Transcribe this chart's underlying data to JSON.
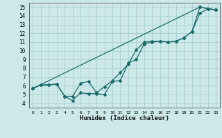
{
  "title": "",
  "xlabel": "Humidex (Indice chaleur)",
  "ylabel": "",
  "bg_color": "#cce8e8",
  "grid_color": "#aacfcf",
  "line_color": "#1a6b6b",
  "xlim": [
    -0.5,
    23.5
  ],
  "ylim": [
    3.5,
    15.5
  ],
  "xticks": [
    0,
    1,
    2,
    3,
    4,
    5,
    6,
    7,
    8,
    9,
    10,
    11,
    12,
    13,
    14,
    15,
    16,
    17,
    18,
    19,
    20,
    21,
    22,
    23
  ],
  "yticks": [
    4,
    5,
    6,
    7,
    8,
    9,
    10,
    11,
    12,
    13,
    14,
    15
  ],
  "line1_x": [
    0,
    1,
    2,
    3,
    4,
    5,
    6,
    7,
    8,
    9,
    10,
    11,
    12,
    13,
    14,
    15,
    16,
    17,
    18,
    19,
    20,
    21,
    22,
    23
  ],
  "line1_y": [
    5.7,
    6.1,
    6.1,
    6.2,
    4.8,
    4.8,
    6.3,
    6.5,
    5.2,
    5.9,
    6.6,
    7.5,
    8.5,
    10.1,
    11.0,
    11.1,
    11.1,
    11.0,
    11.1,
    11.5,
    12.2,
    15.0,
    14.8,
    14.7
  ],
  "line2_x": [
    0,
    1,
    2,
    3,
    4,
    5,
    6,
    7,
    8,
    9,
    10,
    11,
    12,
    13,
    14,
    15,
    16,
    17,
    18,
    19,
    20,
    21,
    22,
    23
  ],
  "line2_y": [
    5.7,
    6.1,
    6.1,
    6.2,
    4.8,
    4.3,
    5.2,
    5.1,
    5.1,
    5.0,
    6.5,
    6.6,
    8.6,
    9.0,
    10.8,
    11.0,
    11.1,
    11.0,
    11.1,
    11.5,
    12.2,
    14.3,
    14.8,
    14.7
  ],
  "line3_x": [
    0,
    21,
    23
  ],
  "line3_y": [
    5.7,
    15.0,
    14.7
  ]
}
